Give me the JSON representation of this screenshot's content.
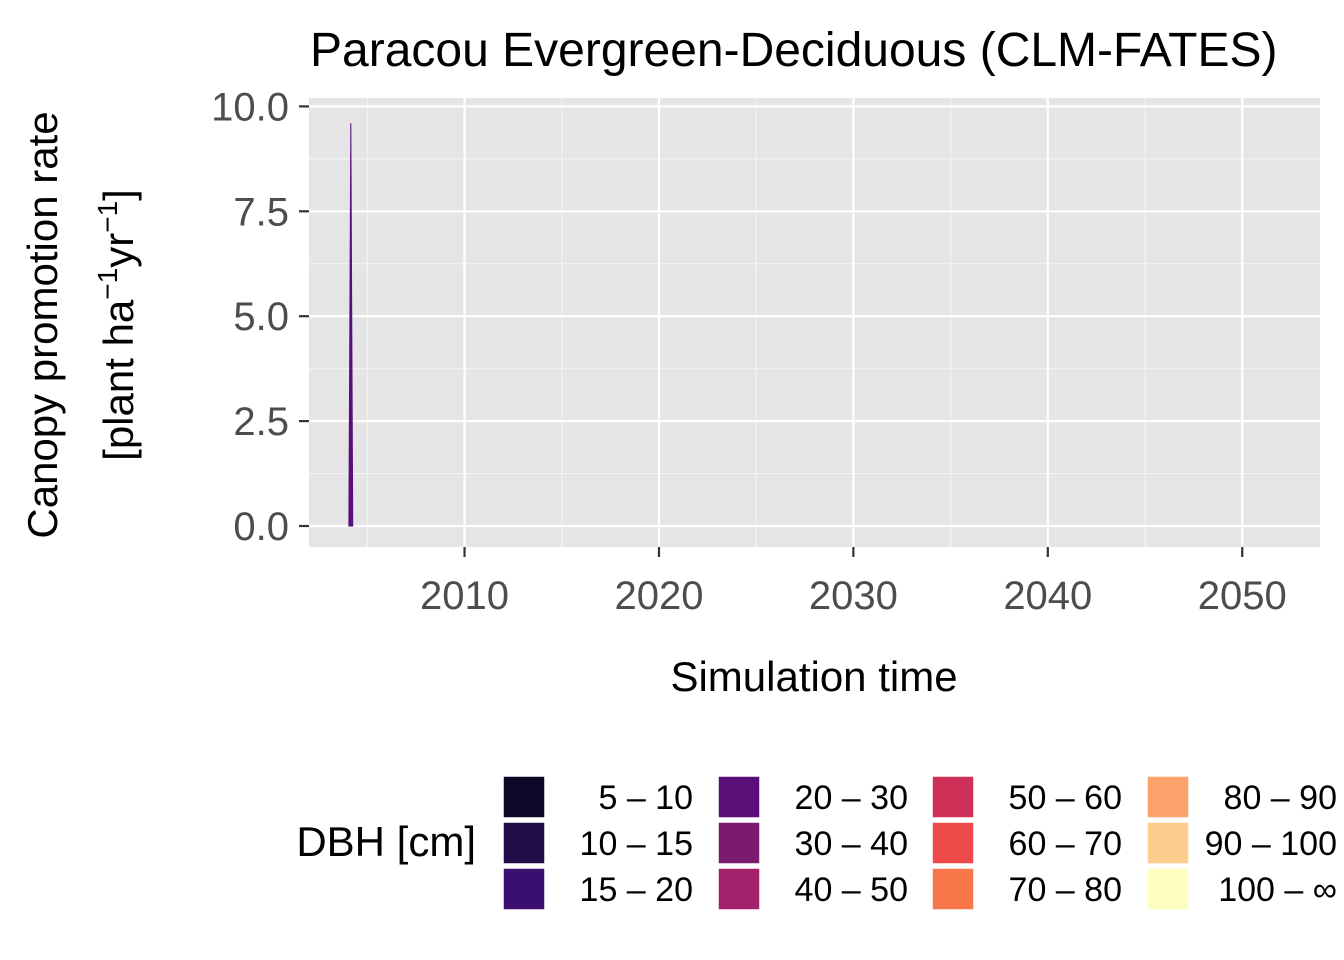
{
  "chart_data": {
    "type": "area",
    "title": "Paracou Evergreen-Deciduous (CLM-FATES)",
    "xlabel": "Simulation time",
    "ylabel_line1": "Canopy promotion rate",
    "ylabel_line2_parts": [
      "[plant ha",
      "−1",
      "yr",
      "−1",
      "]"
    ],
    "xlim": [
      2002,
      2054
    ],
    "ylim": [
      -0.5,
      10.2
    ],
    "x_ticks": [
      2010,
      2020,
      2030,
      2040,
      2050
    ],
    "x_tick_labels": [
      "2010",
      "2020",
      "2030",
      "2040",
      "2050"
    ],
    "y_ticks": [
      0,
      2.5,
      5,
      7.5,
      10
    ],
    "y_tick_labels": [
      "0.0",
      "2.5",
      "5.0",
      "7.5",
      "10.0"
    ],
    "grid": true,
    "legend_position": "bottom",
    "legend": {
      "title": "DBH [cm]",
      "entries": [
        {
          "label": "5 – 10",
          "color": "#0d0a29"
        },
        {
          "label": "10 – 15",
          "color": "#1f0c48"
        },
        {
          "label": "15 – 20",
          "color": "#3b0f70"
        },
        {
          "label": "20 – 30",
          "color": "#5a0f78"
        },
        {
          "label": "30 – 40",
          "color": "#7b1a6e"
        },
        {
          "label": "40 – 50",
          "color": "#a3206a"
        },
        {
          "label": "50 – 60",
          "color": "#cf3058"
        },
        {
          "label": "60 – 70",
          "color": "#ef4a4a"
        },
        {
          "label": "70 – 80",
          "color": "#f8764a"
        },
        {
          "label": "80 – 90",
          "color": "#fba36b"
        },
        {
          "label": "90 – 100",
          "color": "#fdcd8e"
        },
        {
          "label": "100 – ∞",
          "color": "#fcfdbf"
        }
      ]
    },
    "series": [
      {
        "name": "20 – 30",
        "color": "#5a0f78",
        "points": [
          [
            2004.05,
            0
          ],
          [
            2004.15,
            9.6
          ],
          [
            2004.25,
            0
          ]
        ]
      }
    ]
  }
}
